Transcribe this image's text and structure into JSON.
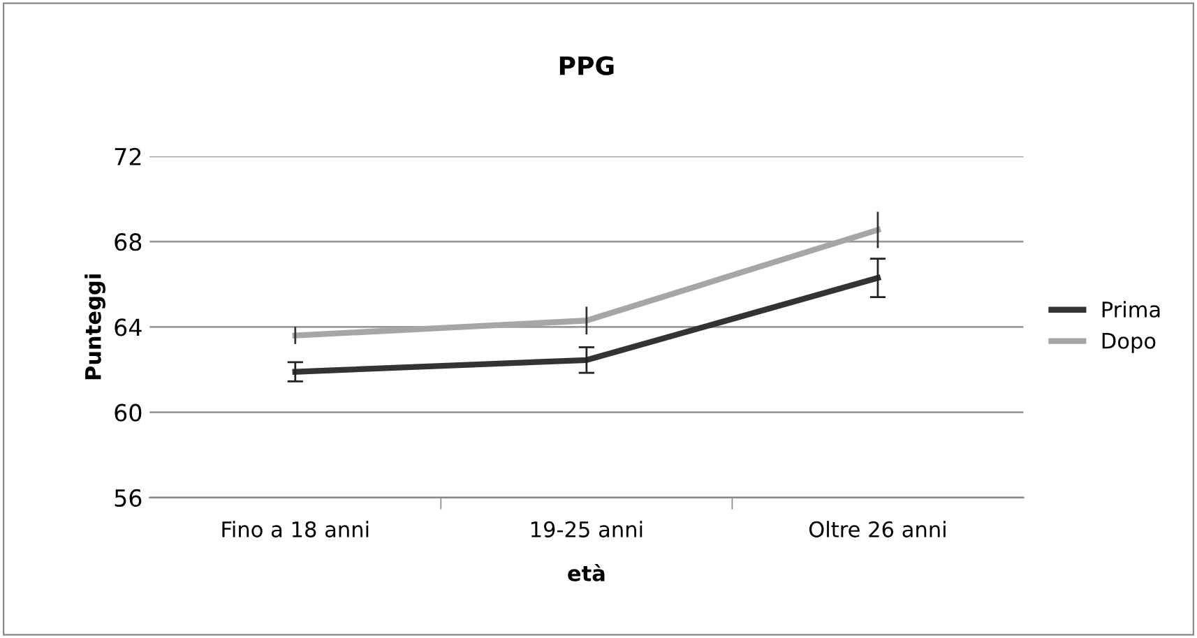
{
  "chart_data": {
    "type": "line",
    "title": "PPG",
    "xlabel": "età",
    "ylabel": "Punteggi",
    "categories": [
      "Fino a 18 anni",
      "19-25 anni",
      "Oltre 26 anni"
    ],
    "series": [
      {
        "name": "Prima",
        "color": "#333333",
        "values": [
          61.9,
          62.45,
          66.3
        ],
        "errors": [
          0.45,
          0.6,
          0.9
        ]
      },
      {
        "name": "Dopo",
        "color": "#a6a6a6",
        "values": [
          63.6,
          64.3,
          68.55
        ],
        "errors": [
          0.4,
          0.65,
          0.85
        ]
      }
    ],
    "ylim": [
      56,
      72
    ],
    "yticks": [
      56,
      60,
      64,
      68,
      72
    ],
    "grid": "y",
    "legend": "right",
    "marker": "none",
    "line_style": "solid"
  }
}
